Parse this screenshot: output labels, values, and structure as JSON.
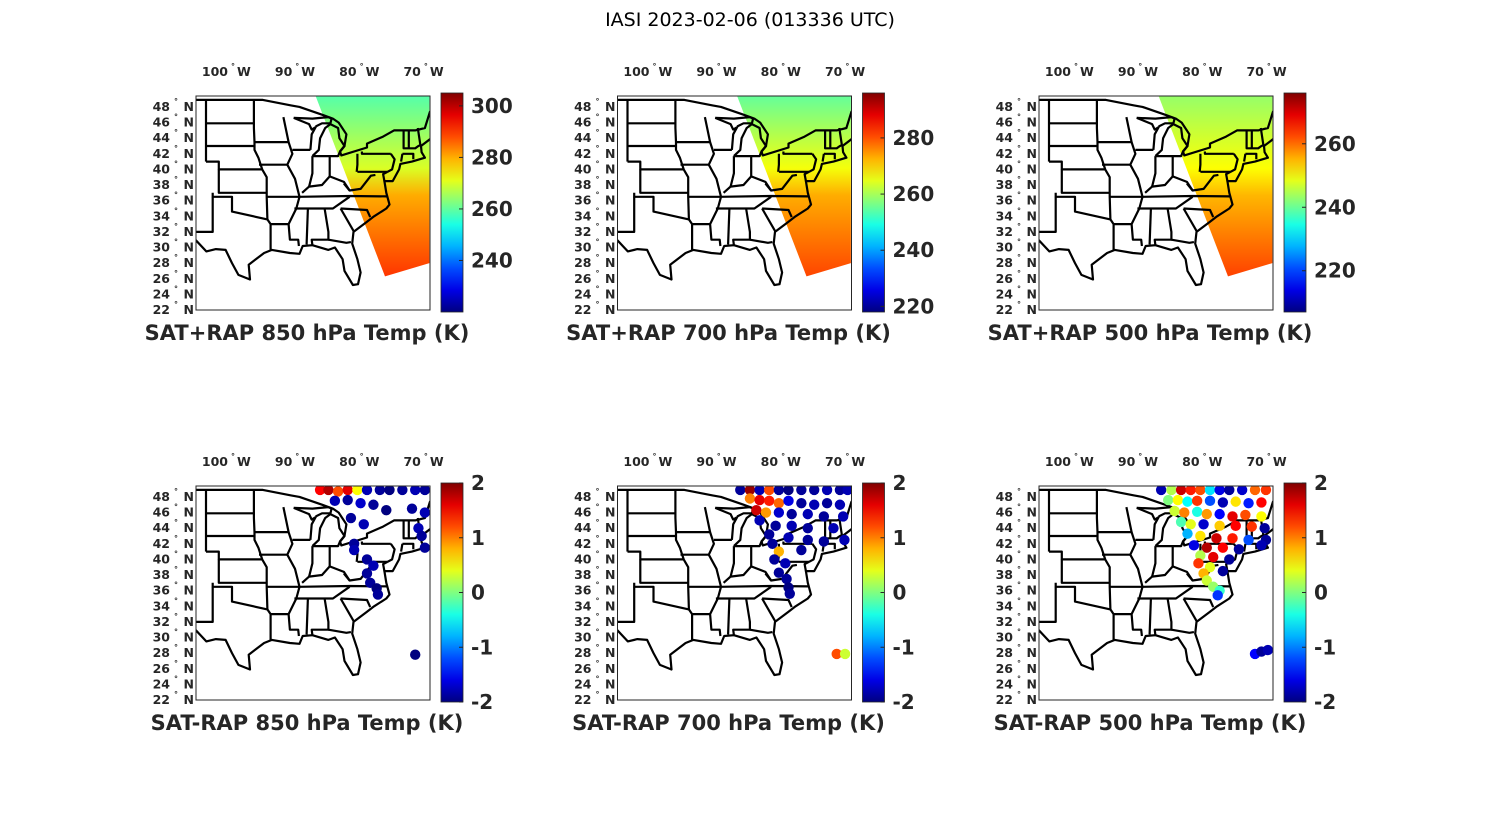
{
  "figure_title": "IASI 2023-02-06 (013336 UTC)",
  "map_extent": {
    "lon": [
      -105.6,
      -69.2
    ],
    "lat": [
      22,
      49.4
    ]
  },
  "lon_ticks": [
    {
      "value": -100,
      "label": "100",
      "hemi": "W"
    },
    {
      "value": -90,
      "label": "90",
      "hemi": "W"
    },
    {
      "value": -80,
      "label": "80",
      "hemi": "W"
    },
    {
      "value": -70,
      "label": "70",
      "hemi": "W"
    }
  ],
  "lat_ticks": [
    {
      "value": 48,
      "label": "48",
      "hemi": "N"
    },
    {
      "value": 46,
      "label": "46",
      "hemi": "N"
    },
    {
      "value": 44,
      "label": "44",
      "hemi": "N"
    },
    {
      "value": 42,
      "label": "42",
      "hemi": "N"
    },
    {
      "value": 40,
      "label": "40",
      "hemi": "N"
    },
    {
      "value": 38,
      "label": "38",
      "hemi": "N"
    },
    {
      "value": 36,
      "label": "36",
      "hemi": "N"
    },
    {
      "value": 34,
      "label": "34",
      "hemi": "N"
    },
    {
      "value": 32,
      "label": "32",
      "hemi": "N"
    },
    {
      "value": 30,
      "label": "30",
      "hemi": "N"
    },
    {
      "value": 28,
      "label": "28",
      "hemi": "N"
    },
    {
      "value": 26,
      "label": "26",
      "hemi": "N"
    },
    {
      "value": 24,
      "label": "24",
      "hemi": "N"
    },
    {
      "value": 22,
      "label": "22",
      "hemi": "N"
    }
  ],
  "degree_symbol": "°",
  "swath": [
    [
      -87,
      49.4
    ],
    [
      -69.3,
      49.4
    ],
    [
      -69.3,
      28
    ],
    [
      -76.2,
      26.3
    ]
  ],
  "chart_data": [
    {
      "type": "map-field",
      "title": "SAT+RAP 850 hPa Temp (K)",
      "clim": [
        220,
        305
      ],
      "cbar_ticks": [
        240,
        260,
        280,
        300
      ],
      "colormap": "jet",
      "swath_gradient": [
        {
          "frac": 0,
          "value": 259
        },
        {
          "frac": 0.4,
          "value": 270
        },
        {
          "frac": 0.55,
          "value": 280
        },
        {
          "frac": 1,
          "value": 290
        }
      ]
    },
    {
      "type": "map-field",
      "title": "SAT+RAP 700 hPa Temp (K)",
      "clim": [
        218,
        296
      ],
      "cbar_ticks": [
        220,
        240,
        260,
        280
      ],
      "colormap": "jet",
      "swath_gradient": [
        {
          "frac": 0,
          "value": 255
        },
        {
          "frac": 0.4,
          "value": 266
        },
        {
          "frac": 0.55,
          "value": 273
        },
        {
          "frac": 1,
          "value": 281
        }
      ]
    },
    {
      "type": "map-field",
      "title": "SAT+RAP 500 hPa Temp (K)",
      "clim": [
        207,
        276
      ],
      "cbar_ticks": [
        220,
        240,
        260
      ],
      "colormap": "jet",
      "swath_gradient": [
        {
          "frac": 0,
          "value": 243
        },
        {
          "frac": 0.4,
          "value": 250
        },
        {
          "frac": 0.55,
          "value": 255
        },
        {
          "frac": 1,
          "value": 263
        }
      ]
    },
    {
      "type": "scatter-map",
      "title": "SAT-RAP 850 hPa Temp (K)",
      "clim": [
        -2,
        2
      ],
      "cbar_ticks": [
        -2,
        -1,
        0,
        1,
        2
      ],
      "colormap": "jet",
      "points": [
        [
          -86.3,
          48.9,
          1.5
        ],
        [
          -85,
          48.9,
          1.8
        ],
        [
          -83.5,
          48.7,
          1.2
        ],
        [
          -82,
          48.9,
          1.6
        ],
        [
          -80.5,
          48.9,
          0.5
        ],
        [
          -79,
          48.9,
          -1.8
        ],
        [
          -77,
          48.9,
          -1.9
        ],
        [
          -75.5,
          48.9,
          -2
        ],
        [
          -73.5,
          48.9,
          -1.9
        ],
        [
          -71.5,
          48.9,
          -1.8
        ],
        [
          -70,
          48.9,
          -1.9
        ],
        [
          -84,
          47.5,
          -1.8
        ],
        [
          -82,
          47.6,
          -1.9
        ],
        [
          -80,
          47.2,
          -1.7
        ],
        [
          -78,
          47,
          -1.9
        ],
        [
          -76,
          46.3,
          -2
        ],
        [
          -72,
          46.5,
          -1.9
        ],
        [
          -70,
          46,
          -1.8
        ],
        [
          -81.5,
          45.3,
          -1.9
        ],
        [
          -79.5,
          44.5,
          -1.8
        ],
        [
          -71,
          44,
          -1.8
        ],
        [
          -70.5,
          43,
          -1.9
        ],
        [
          -81,
          42,
          -1.9
        ],
        [
          -81,
          41.2,
          -1.8
        ],
        [
          -70,
          41.5,
          -1.9
        ],
        [
          -79,
          40,
          -1.9
        ],
        [
          -78,
          39.2,
          -1.8
        ],
        [
          -79,
          38.2,
          -1.9
        ],
        [
          -78.5,
          37,
          -1.9
        ],
        [
          -77.5,
          36.3,
          -2
        ],
        [
          -77.3,
          35.5,
          -1.9
        ],
        [
          -71.5,
          27.8,
          -2
        ]
      ]
    },
    {
      "type": "scatter-map",
      "title": "SAT-RAP 700 hPa Temp (K)",
      "clim": [
        -2,
        2
      ],
      "cbar_ticks": [
        -2,
        -1,
        0,
        1,
        2
      ],
      "colormap": "jet",
      "points": [
        [
          -86.5,
          48.9,
          -1.9
        ],
        [
          -85,
          48.9,
          1.9
        ],
        [
          -83.5,
          48.9,
          -1.8
        ],
        [
          -82,
          48.9,
          1.2
        ],
        [
          -80.5,
          48.9,
          -1.9
        ],
        [
          -79,
          48.9,
          -2
        ],
        [
          -77,
          48.9,
          -1.9
        ],
        [
          -75,
          48.9,
          -1.9
        ],
        [
          -73,
          48.9,
          -1.8
        ],
        [
          -71,
          48.9,
          -1.9
        ],
        [
          -69.8,
          48.9,
          -1.8
        ],
        [
          -85,
          47.8,
          1.0
        ],
        [
          -83.5,
          47.6,
          1.6
        ],
        [
          -82,
          47.5,
          1.4
        ],
        [
          -80.5,
          47.2,
          1.1
        ],
        [
          -79,
          47.5,
          -1.6
        ],
        [
          -77,
          47.2,
          -1.9
        ],
        [
          -75,
          47,
          -1.8
        ],
        [
          -73,
          47.2,
          -1.9
        ],
        [
          -71,
          47,
          -1.8
        ],
        [
          -84,
          46.3,
          1.7
        ],
        [
          -82.5,
          46,
          0.9
        ],
        [
          -80.5,
          46,
          -1.7
        ],
        [
          -78.5,
          45.8,
          -1.9
        ],
        [
          -76,
          45.8,
          -1.8
        ],
        [
          -73.5,
          45.5,
          -1.9
        ],
        [
          -70.5,
          45.5,
          -1.8
        ],
        [
          -83.5,
          45,
          -1.8
        ],
        [
          -81,
          44.3,
          -1.9
        ],
        [
          -78.5,
          44.3,
          -1.8
        ],
        [
          -76,
          44,
          -1.9
        ],
        [
          -72,
          44,
          -1.8
        ],
        [
          -82,
          43.2,
          -1.9
        ],
        [
          -79,
          42.8,
          -1.8
        ],
        [
          -76,
          42.5,
          -1.9
        ],
        [
          -73.5,
          42.3,
          -1.9
        ],
        [
          -70.3,
          42.5,
          -1.8
        ],
        [
          -81.5,
          42,
          -1.9
        ],
        [
          -80.5,
          41,
          0.8
        ],
        [
          -77,
          41.2,
          -1.9
        ],
        [
          -81.2,
          40,
          -1.9
        ],
        [
          -79.5,
          39.5,
          -1.8
        ],
        [
          -80.5,
          38.3,
          -1.9
        ],
        [
          -79.3,
          37.5,
          -1.9
        ],
        [
          -79,
          36.4,
          -2
        ],
        [
          -78.8,
          35.6,
          -1.9
        ],
        [
          -71.5,
          27.9,
          1.2
        ],
        [
          -70.2,
          27.9,
          0.3
        ]
      ]
    },
    {
      "type": "scatter-map",
      "title": "SAT-RAP 500 hPa Temp (K)",
      "clim": [
        -2,
        2
      ],
      "cbar_ticks": [
        -2,
        -1,
        0,
        1,
        2
      ],
      "colormap": "jet",
      "points": [
        [
          -86.6,
          48.9,
          -1.8
        ],
        [
          -85,
          48.9,
          0.2
        ],
        [
          -83.5,
          48.9,
          1.7
        ],
        [
          -82,
          48.9,
          1.4
        ],
        [
          -80.5,
          48.9,
          1.2
        ],
        [
          -79,
          48.9,
          -0.6
        ],
        [
          -77.5,
          48.9,
          -1.6
        ],
        [
          -76,
          48.9,
          -1.9
        ],
        [
          -74,
          48.9,
          -1.7
        ],
        [
          -72,
          48.9,
          1.1
        ],
        [
          -70.3,
          48.9,
          1.3
        ],
        [
          -85.5,
          47.6,
          0.0
        ],
        [
          -84,
          47.6,
          0.5
        ],
        [
          -82.5,
          47.4,
          -0.5
        ],
        [
          -81,
          47.5,
          1.3
        ],
        [
          -79,
          47.5,
          -1.2
        ],
        [
          -77,
          47.3,
          -1.8
        ],
        [
          -75,
          47.4,
          0.6
        ],
        [
          -73,
          47.2,
          -1.4
        ],
        [
          -71,
          47.3,
          1.5
        ],
        [
          -84.5,
          46.2,
          0.3
        ],
        [
          -83,
          46,
          1.0
        ],
        [
          -81,
          46.1,
          -0.4
        ],
        [
          -79.5,
          45.8,
          0.9
        ],
        [
          -77.5,
          45.8,
          -1.5
        ],
        [
          -75.5,
          45.5,
          1.6
        ],
        [
          -73.5,
          45.7,
          1.2
        ],
        [
          -71,
          45.5,
          0.5
        ],
        [
          -83.5,
          44.8,
          -0.2
        ],
        [
          -82,
          44.5,
          0.4
        ],
        [
          -80,
          44.5,
          -1.7
        ],
        [
          -77.5,
          44.3,
          0.7
        ],
        [
          -75,
          44.3,
          1.5
        ],
        [
          -72.5,
          44.2,
          1.3
        ],
        [
          -70.5,
          44,
          -1.9
        ],
        [
          -82.5,
          43.3,
          -0.8
        ],
        [
          -80.5,
          43,
          0.6
        ],
        [
          -78,
          42.7,
          1.7
        ],
        [
          -75.5,
          42.7,
          1.4
        ],
        [
          -73,
          42.5,
          -1.2
        ],
        [
          -70.3,
          42.5,
          -1.9
        ],
        [
          -81.5,
          41.8,
          -1.6
        ],
        [
          -79.5,
          41.5,
          1.8
        ],
        [
          -77,
          41.5,
          1.5
        ],
        [
          -74.5,
          41.3,
          -1.9
        ],
        [
          -71,
          41.8,
          -1.8
        ],
        [
          -80.5,
          40.5,
          0.2
        ],
        [
          -78.5,
          40.3,
          1.6
        ],
        [
          -76,
          40,
          -1.9
        ],
        [
          -80.8,
          39.5,
          1.3
        ],
        [
          -79,
          39,
          0.4
        ],
        [
          -77,
          38.5,
          -1.9
        ],
        [
          -80,
          38.2,
          0.8
        ],
        [
          -79.5,
          37.3,
          0.3
        ],
        [
          -78.5,
          36.5,
          0.1
        ],
        [
          -77.5,
          36,
          -0.3
        ],
        [
          -77.8,
          35.4,
          -1.3
        ],
        [
          -72,
          27.9,
          -1.5
        ],
        [
          -71,
          28.2,
          -1.9
        ],
        [
          -70,
          28.4,
          -1.8
        ]
      ]
    }
  ]
}
